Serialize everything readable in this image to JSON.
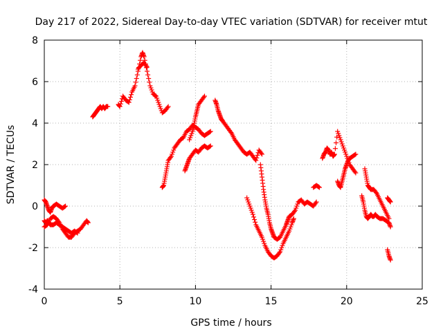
{
  "chart_data": {
    "type": "scatter",
    "title": "Day 217 of 2022, Sidereal Day-to-day VTEC variation (SDTVAR) for receiver mtut",
    "xlabel": "GPS time / hours",
    "ylabel": "SDTVAR / TECUs",
    "xlim": [
      0,
      25
    ],
    "ylim": [
      -4,
      8
    ],
    "x_ticks": [
      "0",
      "5",
      "10",
      "15",
      "20",
      "25"
    ],
    "y_ticks": [
      "-4",
      "-2",
      "0",
      "2",
      "4",
      "6",
      "8"
    ],
    "grid": true,
    "marker": "+",
    "color": "#ff0000",
    "series": [
      {
        "name": "seg-a",
        "x": [
          0.0,
          0.1,
          0.2,
          0.3,
          0.4,
          0.5,
          0.6,
          0.8,
          1.0,
          1.2,
          1.4
        ],
        "y": [
          0.3,
          0.2,
          0.0,
          -0.2,
          -0.3,
          -0.1,
          0.0,
          0.1,
          0.0,
          -0.1,
          0.0
        ]
      },
      {
        "name": "seg-b",
        "x": [
          0.0,
          0.1,
          0.2,
          0.3,
          0.4,
          0.6,
          0.8,
          1.0,
          1.2,
          1.4,
          1.6,
          1.8,
          2.0,
          2.2
        ],
        "y": [
          -0.7,
          -0.8,
          -0.7,
          -0.8,
          -0.9,
          -0.9,
          -0.8,
          -0.9,
          -1.0,
          -1.1,
          -1.2,
          -1.3,
          -1.2,
          -1.3
        ]
      },
      {
        "name": "seg-c",
        "x": [
          0.0,
          0.2,
          0.4,
          0.6,
          0.8,
          1.0,
          1.2,
          1.4,
          1.6,
          1.8,
          2.0,
          2.2,
          2.4,
          2.6,
          2.8,
          2.9
        ],
        "y": [
          -1.0,
          -0.9,
          -0.6,
          -0.5,
          -0.6,
          -0.8,
          -1.1,
          -1.3,
          -1.5,
          -1.5,
          -1.3,
          -1.2,
          -1.1,
          -0.9,
          -0.7,
          -0.8
        ]
      },
      {
        "name": "seg-d",
        "x": [
          3.2,
          3.3,
          3.4,
          3.5,
          3.6,
          3.7,
          3.8,
          3.9,
          4.0,
          4.1,
          4.2
        ],
        "y": [
          4.3,
          4.4,
          4.5,
          4.6,
          4.7,
          4.8,
          4.7,
          4.8,
          4.7,
          4.8,
          4.8
        ]
      },
      {
        "name": "seg-e",
        "x": [
          4.9,
          5.0,
          5.2,
          5.4,
          5.6,
          5.8,
          6.0,
          6.2,
          6.4,
          6.5,
          6.6,
          6.8,
          7.0,
          7.2,
          7.4,
          7.6,
          7.8,
          8.0,
          8.2
        ],
        "y": [
          4.9,
          4.8,
          5.3,
          5.1,
          5.0,
          5.5,
          5.8,
          6.5,
          7.2,
          7.4,
          7.2,
          6.5,
          5.8,
          5.4,
          5.3,
          4.9,
          4.5,
          4.6,
          4.8
        ]
      },
      {
        "name": "seg-e2",
        "x": [
          6.2,
          6.4,
          6.6,
          6.8
        ],
        "y": [
          6.6,
          6.8,
          6.9,
          6.7
        ]
      },
      {
        "name": "seg-f",
        "x": [
          7.8,
          7.9,
          8.0,
          8.1,
          8.2,
          8.4,
          8.6,
          8.8,
          9.0,
          9.2,
          9.4,
          9.6,
          9.8,
          10.0,
          10.2,
          10.4,
          10.6,
          10.8,
          11.0
        ],
        "y": [
          0.9,
          1.0,
          1.4,
          1.8,
          2.2,
          2.4,
          2.8,
          3.0,
          3.2,
          3.3,
          3.6,
          3.7,
          3.9,
          3.8,
          3.7,
          3.5,
          3.4,
          3.5,
          3.6
        ]
      },
      {
        "name": "seg-g",
        "x": [
          9.3,
          9.4,
          9.5,
          9.6,
          9.8,
          10.0,
          10.2,
          10.4,
          10.6,
          10.8,
          11.0
        ],
        "y": [
          1.7,
          1.9,
          2.1,
          2.3,
          2.5,
          2.7,
          2.6,
          2.8,
          2.9,
          2.8,
          2.9
        ]
      },
      {
        "name": "seg-h",
        "x": [
          9.6,
          9.8,
          9.9,
          10.0,
          10.1,
          10.2,
          10.4,
          10.6
        ],
        "y": [
          3.2,
          3.6,
          3.9,
          4.3,
          4.6,
          4.9,
          5.1,
          5.3
        ]
      },
      {
        "name": "seg-i",
        "x": [
          11.3,
          11.4,
          11.5,
          11.6,
          11.7,
          11.8,
          12.0,
          12.2,
          12.4,
          12.6,
          12.8,
          13.0,
          13.2,
          13.4,
          13.6,
          13.8,
          14.0,
          14.2,
          14.4
        ],
        "y": [
          5.1,
          4.9,
          4.6,
          4.4,
          4.2,
          4.1,
          3.9,
          3.7,
          3.5,
          3.2,
          3.0,
          2.8,
          2.6,
          2.5,
          2.6,
          2.4,
          2.2,
          2.7,
          2.5
        ]
      },
      {
        "name": "seg-j",
        "x": [
          14.3,
          14.4,
          14.5,
          14.6,
          14.7,
          14.8,
          14.9,
          15.0,
          15.1,
          15.2,
          15.4,
          15.6,
          15.8,
          16.0,
          16.1,
          16.2,
          16.4,
          16.6,
          16.8,
          17.0,
          17.2,
          17.4,
          17.6,
          17.8,
          18.0
        ],
        "y": [
          2.0,
          1.4,
          0.8,
          0.3,
          -0.1,
          -0.4,
          -0.8,
          -1.1,
          -1.3,
          -1.5,
          -1.6,
          -1.5,
          -1.2,
          -0.9,
          -0.7,
          -0.5,
          -0.4,
          -0.2,
          0.2,
          0.3,
          0.1,
          0.2,
          0.1,
          -0.0,
          0.2
        ]
      },
      {
        "name": "seg-k",
        "x": [
          13.4,
          13.6,
          13.8,
          14.0,
          14.2,
          14.4,
          14.6,
          14.8,
          15.0,
          15.2,
          15.4,
          15.6,
          15.8,
          16.0,
          16.2,
          16.4,
          16.5
        ],
        "y": [
          0.4,
          0.0,
          -0.4,
          -0.9,
          -1.2,
          -1.5,
          -1.9,
          -2.2,
          -2.4,
          -2.5,
          -2.4,
          -2.2,
          -1.8,
          -1.5,
          -1.2,
          -0.8,
          -0.6
        ]
      },
      {
        "name": "seg-l",
        "x": [
          17.8,
          18.0,
          18.2
        ],
        "y": [
          0.9,
          1.0,
          0.9
        ]
      },
      {
        "name": "seg-m",
        "x": [
          18.4,
          18.5,
          18.6,
          18.7,
          18.8,
          18.9,
          19.0,
          19.1,
          19.2,
          19.4,
          19.6,
          19.8,
          20.0,
          20.2,
          20.4,
          20.6
        ],
        "y": [
          2.3,
          2.5,
          2.6,
          2.8,
          2.7,
          2.5,
          2.6,
          2.4,
          2.5,
          3.6,
          3.2,
          2.8,
          2.4,
          2.0,
          1.8,
          1.6
        ]
      },
      {
        "name": "seg-n",
        "x": [
          19.4,
          19.5,
          19.6,
          19.7,
          19.8,
          19.9,
          20.0,
          20.1,
          20.2,
          20.4,
          20.6
        ],
        "y": [
          1.2,
          1.0,
          0.9,
          1.2,
          1.5,
          1.8,
          2.0,
          2.2,
          2.3,
          2.4,
          2.5
        ]
      },
      {
        "name": "seg-o",
        "x": [
          21.0,
          21.1,
          21.2,
          21.3,
          21.4,
          21.5,
          21.6,
          21.7,
          21.8,
          21.9,
          22.0,
          22.2,
          22.4,
          22.6,
          22.8,
          22.9
        ],
        "y": [
          0.5,
          0.2,
          -0.2,
          -0.5,
          -0.6,
          -0.5,
          -0.4,
          -0.5,
          -0.5,
          -0.4,
          -0.5,
          -0.6,
          -0.6,
          -0.7,
          -0.8,
          -1.0
        ]
      },
      {
        "name": "seg-p",
        "x": [
          21.2,
          21.3,
          21.4,
          21.5,
          21.6,
          21.8,
          22.0,
          22.2,
          22.4,
          22.6,
          22.8
        ],
        "y": [
          1.8,
          1.4,
          1.0,
          0.9,
          0.8,
          0.8,
          0.6,
          0.3,
          0.0,
          -0.3,
          -0.6
        ]
      },
      {
        "name": "seg-q",
        "x": [
          22.7,
          22.8,
          22.9
        ],
        "y": [
          -2.1,
          -2.4,
          -2.6
        ]
      },
      {
        "name": "seg-r",
        "x": [
          22.7,
          22.8,
          22.9
        ],
        "y": [
          0.4,
          0.3,
          0.2
        ]
      }
    ]
  }
}
